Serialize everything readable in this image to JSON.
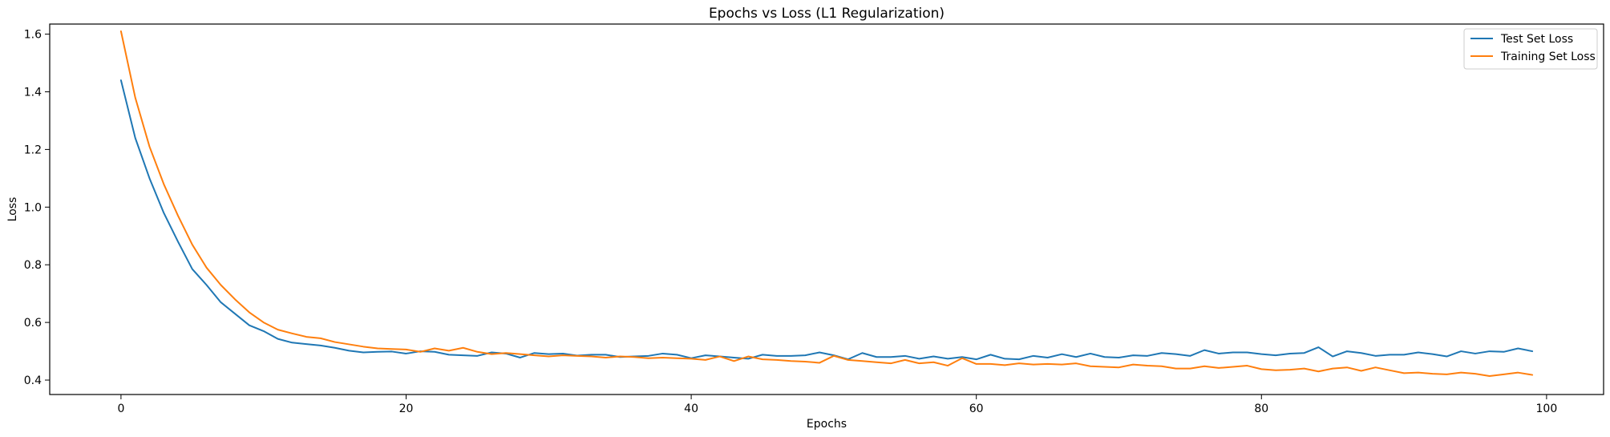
{
  "chart_data": {
    "type": "line",
    "title": "Epochs vs Loss (L1 Regularization)",
    "xlabel": "Epochs",
    "ylabel": "Loss",
    "xlim": [
      -5,
      104
    ],
    "ylim": [
      0.35,
      1.635
    ],
    "xticks": [
      0,
      20,
      40,
      60,
      80,
      100
    ],
    "yticks": [
      0.4,
      0.6,
      0.8,
      1.0,
      1.2,
      1.4,
      1.6
    ],
    "ytick_labels": [
      "0.4",
      "0.6",
      "0.8",
      "1.0",
      "1.2",
      "1.4",
      "1.6"
    ],
    "grid": false,
    "legend_position": "top-right",
    "x": [
      0,
      1,
      2,
      3,
      4,
      5,
      6,
      7,
      8,
      9,
      10,
      11,
      12,
      13,
      14,
      15,
      16,
      17,
      18,
      19,
      20,
      21,
      22,
      23,
      24,
      25,
      26,
      27,
      28,
      29,
      30,
      31,
      32,
      33,
      34,
      35,
      36,
      37,
      38,
      39,
      40,
      41,
      42,
      43,
      44,
      45,
      46,
      47,
      48,
      49,
      50,
      51,
      52,
      53,
      54,
      55,
      56,
      57,
      58,
      59,
      60,
      61,
      62,
      63,
      64,
      65,
      66,
      67,
      68,
      69,
      70,
      71,
      72,
      73,
      74,
      75,
      76,
      77,
      78,
      79,
      80,
      81,
      82,
      83,
      84,
      85,
      86,
      87,
      88,
      89,
      90,
      91,
      92,
      93,
      94,
      95,
      96,
      97,
      98,
      99
    ],
    "series": [
      {
        "name": "Test Set Loss",
        "color": "#1f77b4",
        "values": [
          1.44,
          1.24,
          1.1,
          0.98,
          0.88,
          0.785,
          0.73,
          0.67,
          0.63,
          0.59,
          0.57,
          0.543,
          0.53,
          0.525,
          0.52,
          0.512,
          0.502,
          0.496,
          0.498,
          0.499,
          0.492,
          0.5,
          0.498,
          0.488,
          0.486,
          0.484,
          0.496,
          0.492,
          0.478,
          0.494,
          0.49,
          0.492,
          0.485,
          0.488,
          0.488,
          0.48,
          0.482,
          0.484,
          0.492,
          0.488,
          0.476,
          0.486,
          0.482,
          0.478,
          0.474,
          0.488,
          0.484,
          0.484,
          0.486,
          0.496,
          0.486,
          0.472,
          0.494,
          0.48,
          0.48,
          0.484,
          0.474,
          0.482,
          0.474,
          0.48,
          0.472,
          0.488,
          0.474,
          0.472,
          0.484,
          0.478,
          0.49,
          0.48,
          0.492,
          0.48,
          0.478,
          0.486,
          0.484,
          0.494,
          0.49,
          0.484,
          0.504,
          0.492,
          0.496,
          0.496,
          0.49,
          0.486,
          0.492,
          0.494,
          0.514,
          0.482,
          0.5,
          0.494,
          0.484,
          0.488,
          0.488,
          0.496,
          0.49,
          0.482,
          0.5,
          0.492,
          0.5,
          0.498,
          0.51,
          0.5
        ]
      },
      {
        "name": "Training Set Loss",
        "color": "#ff7f0e",
        "values": [
          1.61,
          1.38,
          1.21,
          1.08,
          0.97,
          0.87,
          0.79,
          0.73,
          0.68,
          0.635,
          0.6,
          0.575,
          0.562,
          0.55,
          0.545,
          0.532,
          0.524,
          0.516,
          0.51,
          0.508,
          0.506,
          0.498,
          0.51,
          0.502,
          0.512,
          0.498,
          0.49,
          0.494,
          0.49,
          0.486,
          0.482,
          0.486,
          0.484,
          0.482,
          0.478,
          0.482,
          0.48,
          0.476,
          0.478,
          0.476,
          0.474,
          0.47,
          0.482,
          0.466,
          0.482,
          0.472,
          0.47,
          0.466,
          0.464,
          0.46,
          0.484,
          0.47,
          0.466,
          0.462,
          0.458,
          0.47,
          0.458,
          0.462,
          0.45,
          0.476,
          0.456,
          0.456,
          0.452,
          0.458,
          0.454,
          0.456,
          0.454,
          0.458,
          0.448,
          0.446,
          0.444,
          0.454,
          0.45,
          0.448,
          0.44,
          0.44,
          0.448,
          0.442,
          0.446,
          0.45,
          0.438,
          0.434,
          0.436,
          0.44,
          0.43,
          0.44,
          0.444,
          0.432,
          0.444,
          0.434,
          0.424,
          0.426,
          0.422,
          0.42,
          0.426,
          0.422,
          0.414,
          0.42,
          0.426,
          0.418
        ]
      }
    ]
  }
}
